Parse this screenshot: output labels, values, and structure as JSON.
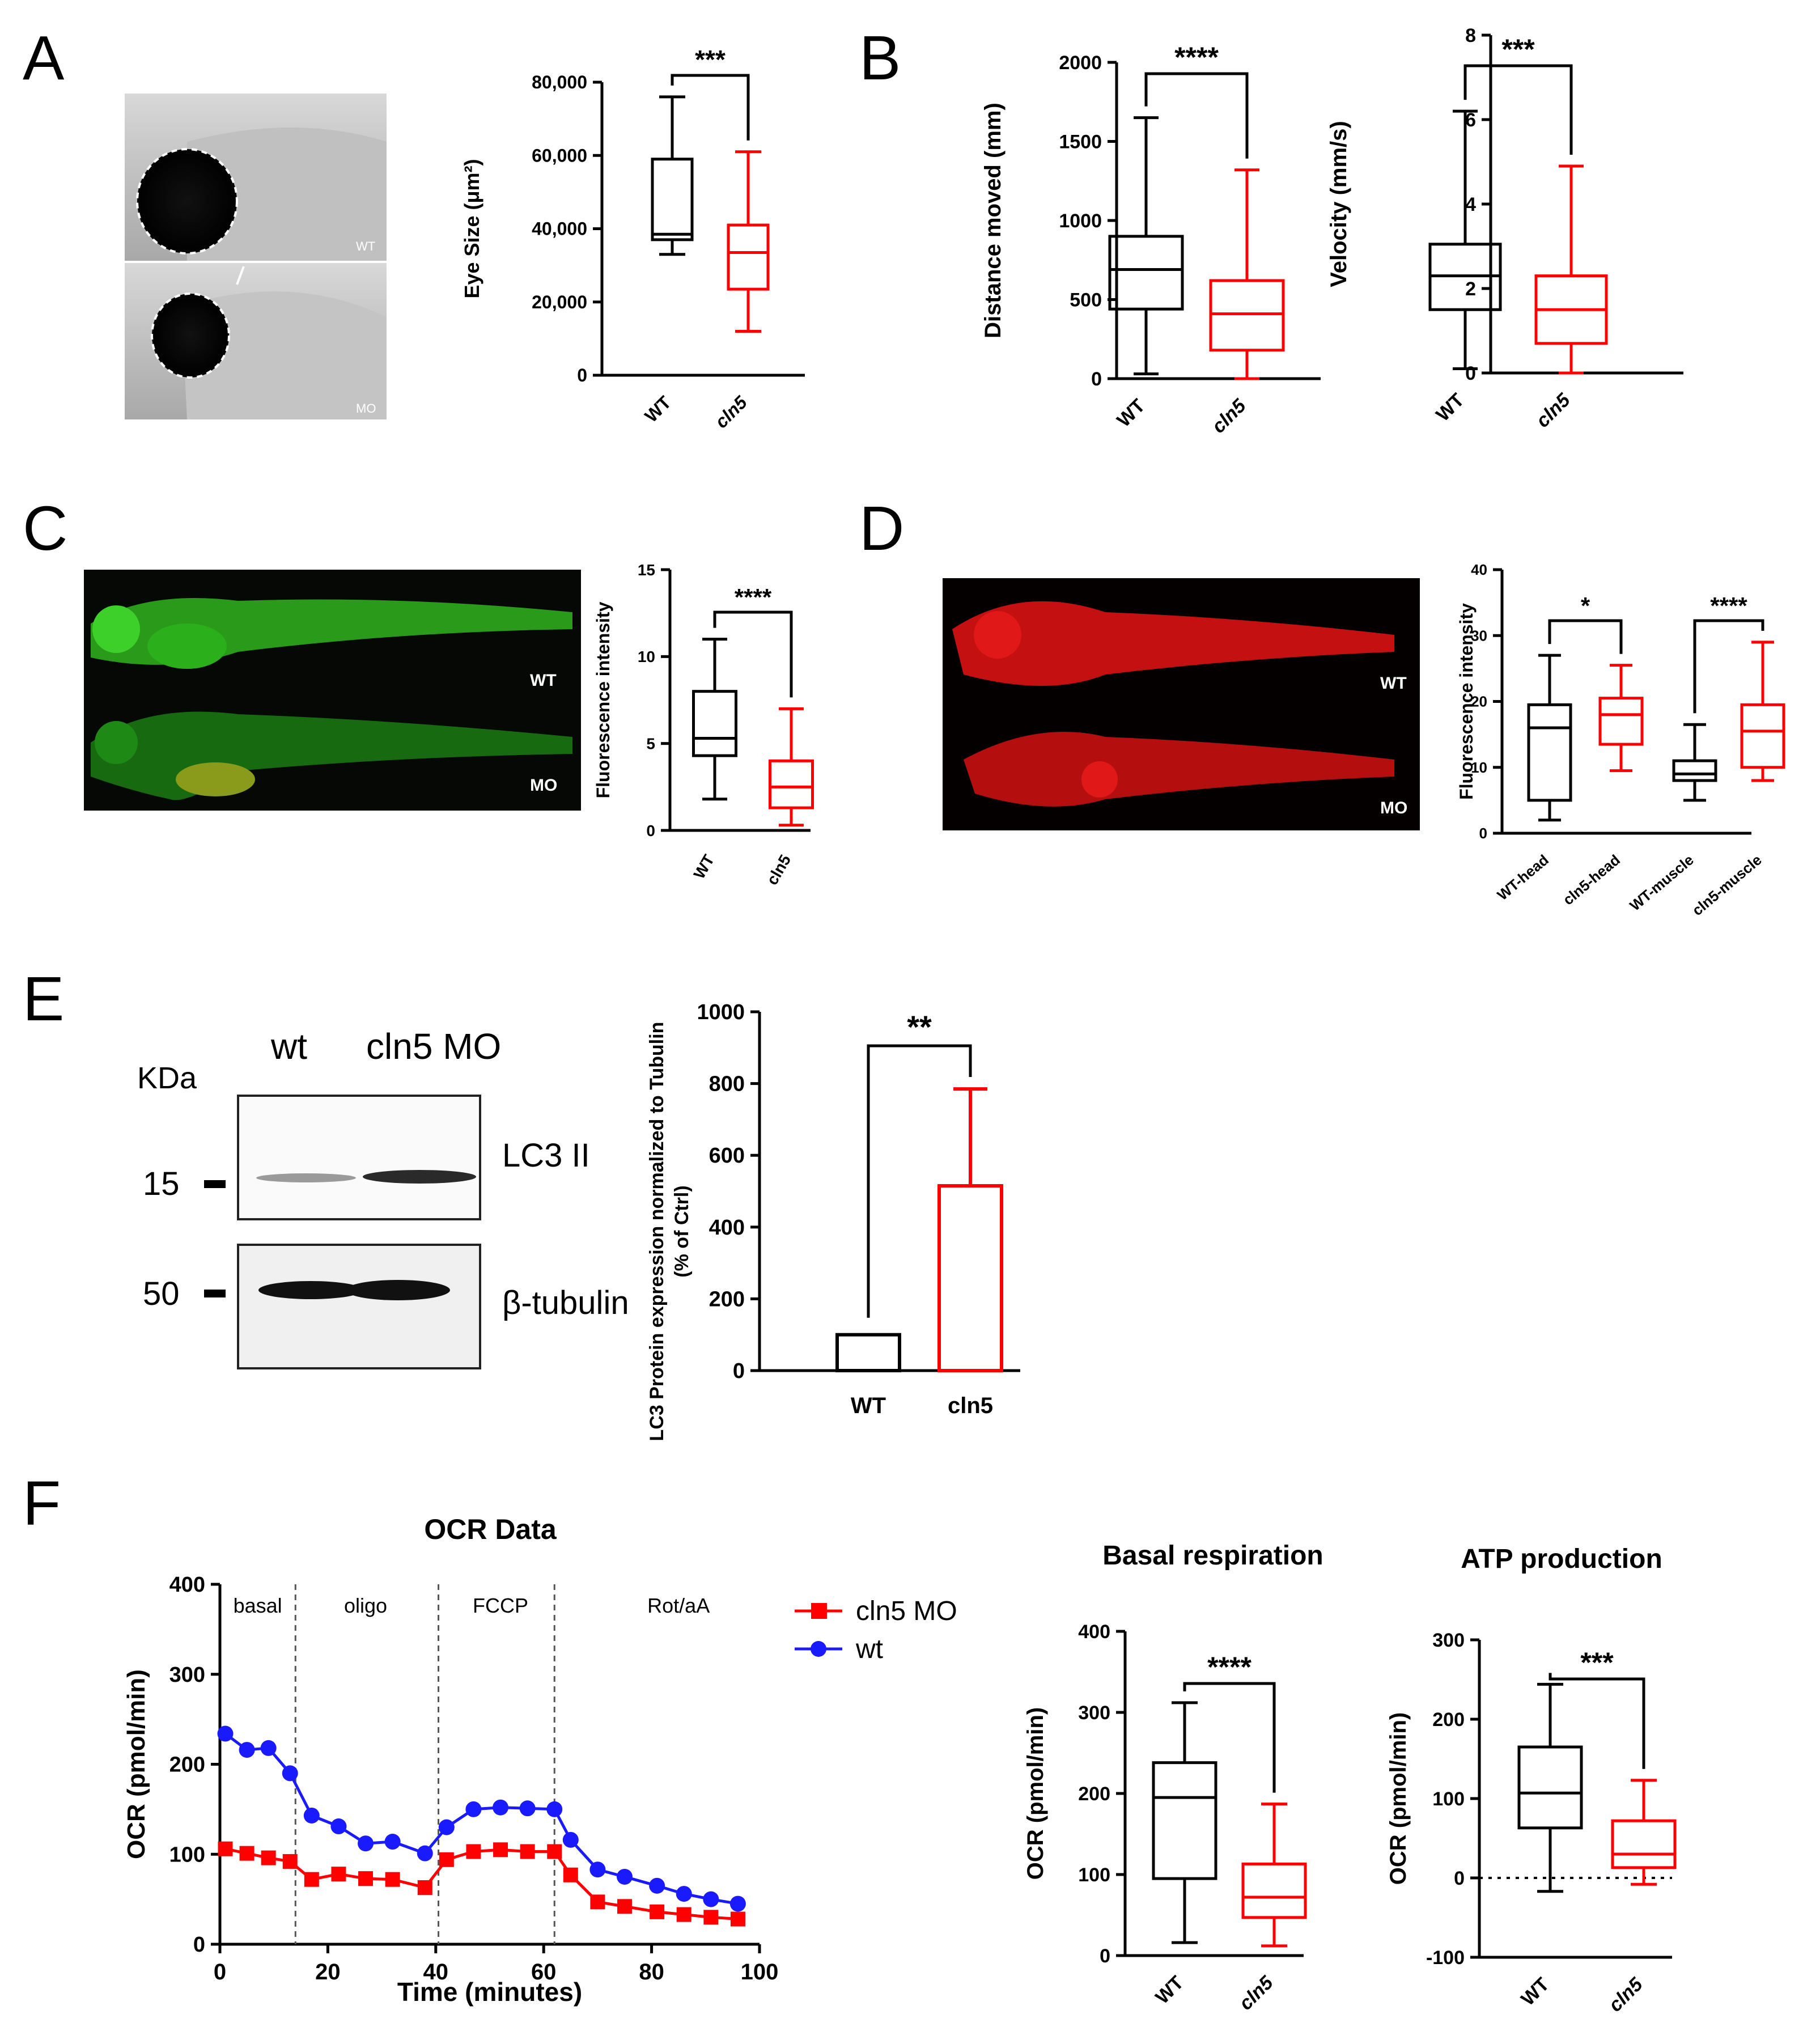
{
  "panel_letters": [
    "A",
    "B",
    "C",
    "D",
    "E",
    "F"
  ],
  "colors": {
    "wt": "#000000",
    "cln5": "#ff0000",
    "wt_line": "#1a1aff"
  },
  "images": {
    "A": {
      "labels": [
        "WT",
        "MO"
      ]
    },
    "C": {
      "labels": [
        "WT",
        "MO"
      ]
    },
    "D": {
      "labels": [
        "WT",
        "MO"
      ]
    },
    "E_blot": {
      "kda_label": "KDa",
      "lanes": [
        "wt",
        "cln5 MO"
      ],
      "bands": [
        {
          "marker": "15",
          "name": "LC3 II"
        },
        {
          "marker": "50",
          "name": "β-tubulin"
        }
      ]
    }
  },
  "chart_data": [
    {
      "id": "A_eye",
      "type": "box",
      "ylabel": "Eye Size (μm²)",
      "ylim": [
        0,
        80000
      ],
      "yticks": [
        0,
        20000,
        40000,
        60000,
        80000
      ],
      "yticklabels": [
        "0",
        "20,000",
        "40,000",
        "60,000",
        "80,000"
      ],
      "categories": [
        "WT",
        "cln5"
      ],
      "boxes": [
        {
          "min": 33000,
          "q1": 37000,
          "median": 38500,
          "q3": 59000,
          "max": 76000
        },
        {
          "min": 12000,
          "q1": 23500,
          "median": 33500,
          "q3": 41000,
          "max": 61000
        }
      ],
      "annotations": [
        {
          "from": 0,
          "to": 1,
          "text": "***"
        }
      ]
    },
    {
      "id": "B_distance",
      "type": "box",
      "ylabel": "Distance moved (mm)",
      "ylim": [
        0,
        2000
      ],
      "yticks": [
        0,
        500,
        1000,
        1500,
        2000
      ],
      "yticklabels": [
        "0",
        "500",
        "1000",
        "1500",
        "2000"
      ],
      "categories": [
        "WT",
        "cln5"
      ],
      "boxes": [
        {
          "min": 30,
          "q1": 440,
          "median": 690,
          "q3": 900,
          "max": 1650
        },
        {
          "min": 0,
          "q1": 180,
          "median": 410,
          "q3": 620,
          "max": 1320
        }
      ],
      "annotations": [
        {
          "from": 0,
          "to": 1,
          "text": "****"
        }
      ]
    },
    {
      "id": "B_velocity",
      "type": "box",
      "ylabel": "Velocity (mm/s)",
      "ylim": [
        0,
        8
      ],
      "yticks": [
        0,
        2,
        4,
        6,
        8
      ],
      "yticklabels": [
        "0",
        "2",
        "4",
        "6",
        "8"
      ],
      "categories": [
        "WT",
        "cln5"
      ],
      "boxes": [
        {
          "min": 0.1,
          "q1": 1.5,
          "median": 2.3,
          "q3": 3.05,
          "max": 6.2
        },
        {
          "min": 0,
          "q1": 0.7,
          "median": 1.5,
          "q3": 2.3,
          "max": 4.9
        }
      ],
      "annotations": [
        {
          "from": 0,
          "to": 1,
          "text": "***"
        }
      ]
    },
    {
      "id": "C_fluor",
      "type": "box",
      "ylabel": "Fluorescence intensity",
      "ylim": [
        0,
        15
      ],
      "yticks": [
        0,
        5,
        10,
        15
      ],
      "yticklabels": [
        "0",
        "5",
        "10",
        "15"
      ],
      "categories": [
        "WT",
        "cln5"
      ],
      "boxes": [
        {
          "min": 1.8,
          "q1": 4.3,
          "median": 5.3,
          "q3": 8,
          "max": 11
        },
        {
          "min": 0.3,
          "q1": 1.3,
          "median": 2.5,
          "q3": 4,
          "max": 7
        }
      ],
      "annotations": [
        {
          "from": 0,
          "to": 1,
          "text": "****"
        }
      ]
    },
    {
      "id": "D_fluor",
      "type": "box",
      "ylabel": "Fluorescence intensity",
      "ylim": [
        0,
        40
      ],
      "yticks": [
        0,
        10,
        20,
        30,
        40
      ],
      "yticklabels": [
        "0",
        "10",
        "20",
        "30",
        "40"
      ],
      "categories": [
        "WT-head",
        "cln5-head",
        "WT-muscle",
        "cln5-muscle"
      ],
      "boxes": [
        {
          "min": 2,
          "q1": 5,
          "median": 16,
          "q3": 19.5,
          "max": 27
        },
        {
          "min": 9.5,
          "q1": 13.5,
          "median": 18,
          "q3": 20.5,
          "max": 25.5
        },
        {
          "min": 5,
          "q1": 8,
          "median": 9,
          "q3": 11,
          "max": 16.5
        },
        {
          "min": 8,
          "q1": 10,
          "median": 15.5,
          "q3": 19.5,
          "max": 29
        }
      ],
      "annotations": [
        {
          "from": 0,
          "to": 1,
          "text": "*"
        },
        {
          "from": 2,
          "to": 3,
          "text": "****"
        }
      ]
    },
    {
      "id": "E_bar",
      "type": "bar",
      "ylabel": [
        "LC3 Protein expression normalized to Tubulin",
        "(% of Ctrl)"
      ],
      "ylim": [
        0,
        1000
      ],
      "yticks": [
        0,
        200,
        400,
        600,
        800,
        1000
      ],
      "yticklabels": [
        "0",
        "200",
        "400",
        "600",
        "800",
        "1000"
      ],
      "categories": [
        "WT",
        "cln5"
      ],
      "values": [
        100,
        515
      ],
      "errors": [
        0,
        270
      ],
      "annotations": [
        {
          "from": 0,
          "to": 1,
          "text": "**"
        }
      ]
    },
    {
      "id": "F_ocr",
      "type": "line",
      "title": "OCR Data",
      "xlabel": "Time (minutes)",
      "ylabel": "OCR (pmol/min)",
      "xlim": [
        0,
        100
      ],
      "ylim": [
        0,
        400
      ],
      "xticks": [
        0,
        20,
        40,
        60,
        80,
        100
      ],
      "xticklabels": [
        "0",
        "20",
        "40",
        "60",
        "80",
        "100"
      ],
      "yticks": [
        0,
        100,
        200,
        300,
        400
      ],
      "yticklabels": [
        "0",
        "100",
        "200",
        "300",
        "400"
      ],
      "phases": [
        {
          "label": "basal",
          "x": 7
        },
        {
          "label": "oligo",
          "x": 27
        },
        {
          "label": "FCCP",
          "x": 52
        },
        {
          "label": "Rot/aA",
          "x": 85
        }
      ],
      "phase_boundaries": [
        14,
        40.5,
        62
      ],
      "series": [
        {
          "name": "cln5 MO",
          "marker": "square",
          "x": [
            1,
            5,
            9,
            13,
            17,
            22,
            27,
            32,
            38,
            42,
            47,
            52,
            57,
            62,
            65,
            70,
            75,
            81,
            86,
            91,
            96
          ],
          "y": [
            106,
            101,
            96,
            92,
            72,
            78,
            73,
            72,
            63,
            94,
            103,
            105,
            103,
            103,
            77,
            47,
            42,
            36,
            33,
            30,
            28
          ]
        },
        {
          "name": "wt",
          "marker": "circle",
          "x": [
            1,
            5,
            9,
            13,
            17,
            22,
            27,
            32,
            38,
            42,
            47,
            52,
            57,
            62,
            65,
            70,
            75,
            81,
            86,
            91,
            96
          ],
          "y": [
            234,
            216,
            218,
            190,
            143,
            131,
            112,
            114,
            101,
            130,
            150,
            152,
            151,
            150,
            116,
            83,
            75,
            65,
            56,
            50,
            45
          ]
        }
      ]
    },
    {
      "id": "F_basal",
      "type": "box",
      "title": "Basal respiration",
      "ylabel": "OCR (pmol/min)",
      "ylim": [
        0,
        400
      ],
      "yticks": [
        0,
        100,
        200,
        300,
        400
      ],
      "yticklabels": [
        "0",
        "100",
        "200",
        "300",
        "400"
      ],
      "categories": [
        "WT",
        "cln5"
      ],
      "boxes": [
        {
          "min": 16,
          "q1": 95,
          "median": 195,
          "q3": 238,
          "max": 312
        },
        {
          "min": 12,
          "q1": 47,
          "median": 72,
          "q3": 113,
          "max": 187
        }
      ],
      "annotations": [
        {
          "from": 0,
          "to": 1,
          "text": "****"
        }
      ]
    },
    {
      "id": "F_atp",
      "type": "box",
      "title": "ATP production",
      "ylabel": "OCR (pmol/min)",
      "ylim": [
        -100,
        300
      ],
      "yticks": [
        -100,
        0,
        100,
        200,
        300
      ],
      "yticklabels": [
        "-100",
        "0",
        "100",
        "200",
        "300"
      ],
      "categories": [
        "WT",
        "cln5"
      ],
      "boxes": [
        {
          "min": -17,
          "q1": 63,
          "median": 107,
          "q3": 165,
          "max": 244
        },
        {
          "min": -8,
          "q1": 13,
          "median": 30,
          "q3": 72,
          "max": 123
        }
      ],
      "annotations": [
        {
          "from": 0,
          "to": 1,
          "text": "***"
        }
      ]
    }
  ]
}
